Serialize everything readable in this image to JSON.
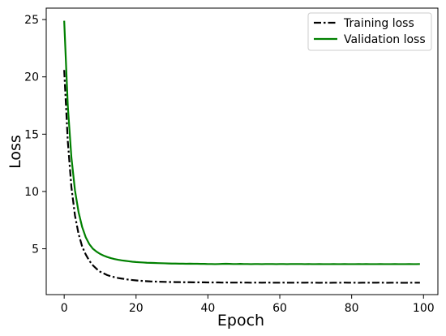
{
  "chart_data": {
    "type": "line",
    "title": "",
    "xlabel": "Epoch",
    "ylabel": "Loss",
    "xlim": [
      -5,
      104
    ],
    "ylim": [
      1.0,
      26.0
    ],
    "x_ticks": [
      0,
      20,
      40,
      60,
      80,
      100
    ],
    "y_ticks": [
      5,
      10,
      15,
      20,
      25
    ],
    "grid": false,
    "legend_position": "top-right",
    "x": [
      0,
      1,
      2,
      3,
      4,
      5,
      6,
      7,
      8,
      9,
      10,
      11,
      12,
      13,
      14,
      15,
      16,
      17,
      18,
      19,
      20,
      21,
      22,
      23,
      24,
      25,
      26,
      27,
      28,
      29,
      30,
      31,
      32,
      33,
      34,
      35,
      36,
      37,
      38,
      39,
      40,
      41,
      42,
      43,
      44,
      45,
      46,
      47,
      48,
      49,
      50,
      51,
      52,
      53,
      54,
      55,
      56,
      57,
      58,
      59,
      60,
      61,
      62,
      63,
      64,
      65,
      66,
      67,
      68,
      69,
      70,
      71,
      72,
      73,
      74,
      75,
      76,
      77,
      78,
      79,
      80,
      81,
      82,
      83,
      84,
      85,
      86,
      87,
      88,
      89,
      90,
      91,
      92,
      93,
      94,
      95,
      96,
      97,
      98,
      99
    ],
    "series": [
      {
        "name": "Training loss",
        "color": "#000000",
        "style": "dashdot",
        "values": [
          20.6,
          14.4,
          10.4,
          7.9,
          6.3,
          5.2,
          4.5,
          3.95,
          3.55,
          3.25,
          3.0,
          2.85,
          2.7,
          2.6,
          2.52,
          2.45,
          2.4,
          2.35,
          2.3,
          2.27,
          2.24,
          2.21,
          2.19,
          2.17,
          2.15,
          2.14,
          2.13,
          2.12,
          2.11,
          2.1,
          2.1,
          2.09,
          2.09,
          2.08,
          2.08,
          2.08,
          2.07,
          2.07,
          2.07,
          2.07,
          2.06,
          2.06,
          2.06,
          2.06,
          2.05,
          2.06,
          2.05,
          2.05,
          2.05,
          2.06,
          2.05,
          2.05,
          2.04,
          2.05,
          2.05,
          2.04,
          2.05,
          2.05,
          2.04,
          2.04,
          2.04,
          2.05,
          2.04,
          2.04,
          2.04,
          2.05,
          2.04,
          2.04,
          2.05,
          2.04,
          2.04,
          2.03,
          2.04,
          2.04,
          2.03,
          2.04,
          2.04,
          2.04,
          2.05,
          2.04,
          2.04,
          2.04,
          2.03,
          2.04,
          2.04,
          2.04,
          2.04,
          2.04,
          2.05,
          2.04,
          2.03,
          2.04,
          2.04,
          2.04,
          2.03,
          2.03,
          2.04,
          2.04,
          2.04,
          2.04
        ]
      },
      {
        "name": "Validation loss",
        "color": "#008000",
        "style": "solid",
        "values": [
          24.9,
          17.5,
          13.0,
          10.1,
          8.2,
          6.9,
          6.0,
          5.4,
          5.0,
          4.75,
          4.55,
          4.4,
          4.28,
          4.18,
          4.1,
          4.04,
          3.99,
          3.95,
          3.91,
          3.87,
          3.84,
          3.82,
          3.8,
          3.78,
          3.77,
          3.76,
          3.75,
          3.74,
          3.73,
          3.72,
          3.71,
          3.71,
          3.7,
          3.7,
          3.69,
          3.7,
          3.69,
          3.69,
          3.68,
          3.68,
          3.67,
          3.67,
          3.66,
          3.67,
          3.68,
          3.69,
          3.68,
          3.67,
          3.67,
          3.68,
          3.67,
          3.67,
          3.66,
          3.67,
          3.67,
          3.66,
          3.67,
          3.67,
          3.67,
          3.66,
          3.67,
          3.67,
          3.66,
          3.67,
          3.67,
          3.67,
          3.67,
          3.66,
          3.67,
          3.66,
          3.66,
          3.67,
          3.66,
          3.66,
          3.66,
          3.67,
          3.66,
          3.66,
          3.67,
          3.66,
          3.66,
          3.66,
          3.67,
          3.66,
          3.67,
          3.66,
          3.66,
          3.66,
          3.67,
          3.66,
          3.66,
          3.66,
          3.67,
          3.66,
          3.66,
          3.66,
          3.67,
          3.66,
          3.66,
          3.67
        ]
      }
    ]
  }
}
